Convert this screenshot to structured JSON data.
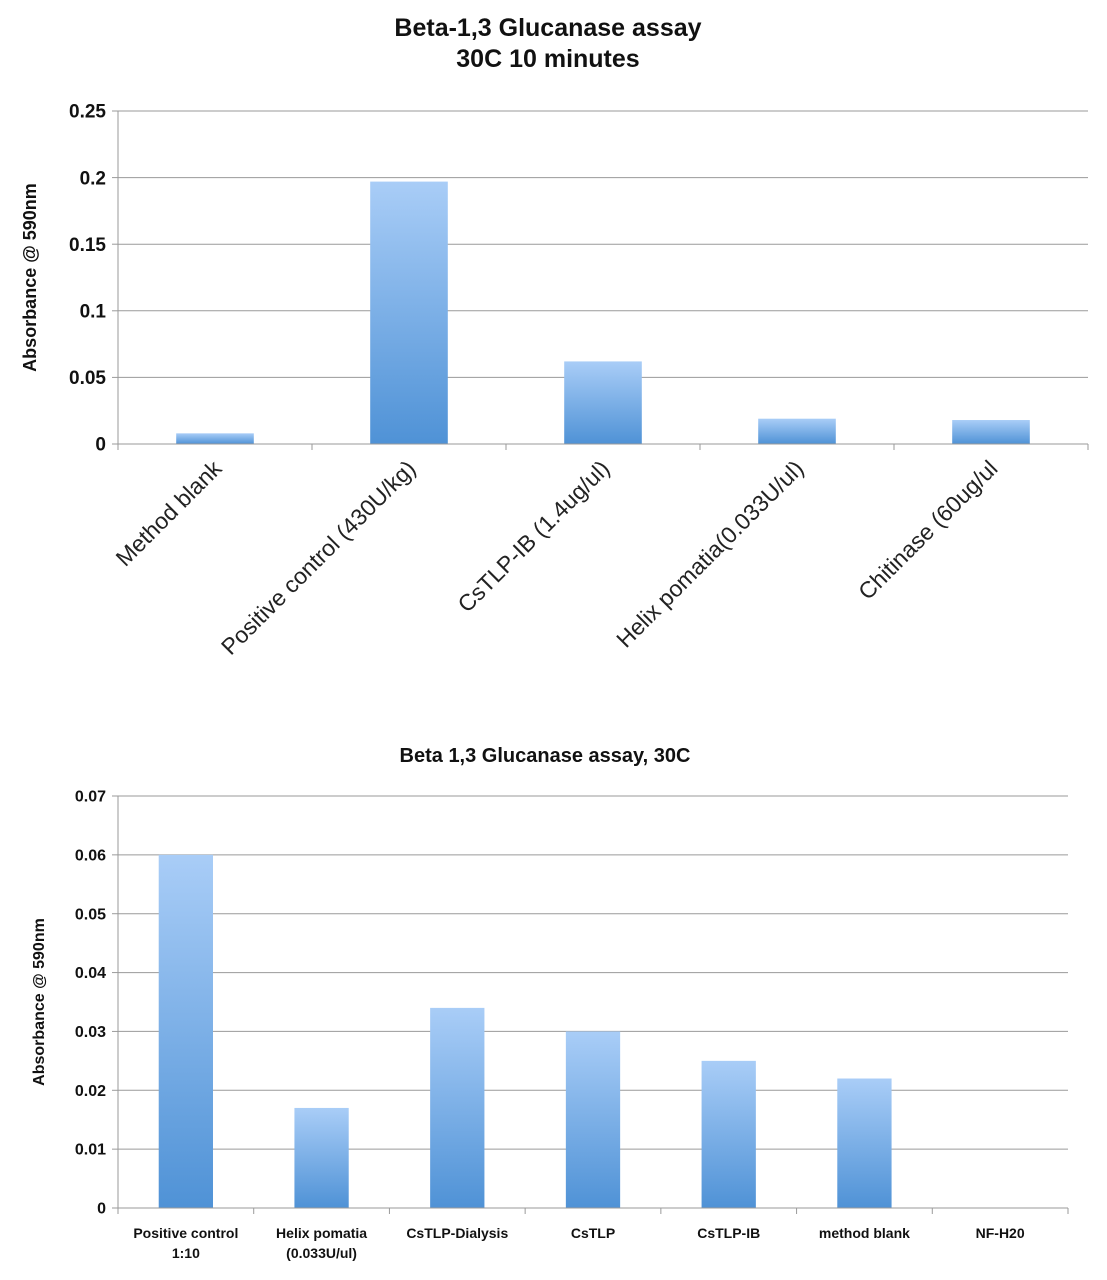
{
  "colors": {
    "bar_top": "#a9cdf7",
    "bar_bottom": "#4f92d6",
    "grid": "#9a9a9a"
  },
  "chart_data": [
    {
      "type": "bar",
      "title": "Beta-1,3 Glucanase  assay",
      "subtitle": "30C 10 minutes",
      "xlabel": "",
      "ylabel": "Absorbance @ 590nm",
      "ylim": [
        0,
        0.25
      ],
      "yticks": [
        0,
        0.05,
        0.1,
        0.15,
        0.2,
        0.25
      ],
      "ytick_labels": [
        "0",
        "0.05",
        "0.1",
        "0.15",
        "0.2",
        "0.25"
      ],
      "grid": true,
      "categories": [
        "Method blank",
        "Positive control (430U/kg)",
        "CsTLP-IB (1.4ug/ul)",
        "Helix pomatia(0.033U/ul)",
        "Chitinase (60ug/ul"
      ],
      "values": [
        0.008,
        0.197,
        0.062,
        0.019,
        0.018
      ]
    },
    {
      "type": "bar",
      "title": "Beta 1,3 Glucanase assay, 30C",
      "xlabel": "",
      "ylabel": "Absorbance @ 590nm",
      "ylim": [
        0,
        0.07
      ],
      "yticks": [
        0,
        0.01,
        0.02,
        0.03,
        0.04,
        0.05,
        0.06,
        0.07
      ],
      "ytick_labels": [
        "0",
        "0.01",
        "0.02",
        "0.03",
        "0.04",
        "0.05",
        "0.06",
        "0.07"
      ],
      "grid": true,
      "categories": [
        [
          "Positive control",
          "1:10"
        ],
        [
          "Helix pomatia",
          "(0.033U/ul)"
        ],
        [
          "CsTLP-Dialysis"
        ],
        [
          "CsTLP"
        ],
        [
          "CsTLP-IB"
        ],
        [
          "method blank"
        ],
        [
          "NF-H20"
        ]
      ],
      "values": [
        0.06,
        0.017,
        0.034,
        0.03,
        0.025,
        0.022,
        0
      ]
    }
  ]
}
